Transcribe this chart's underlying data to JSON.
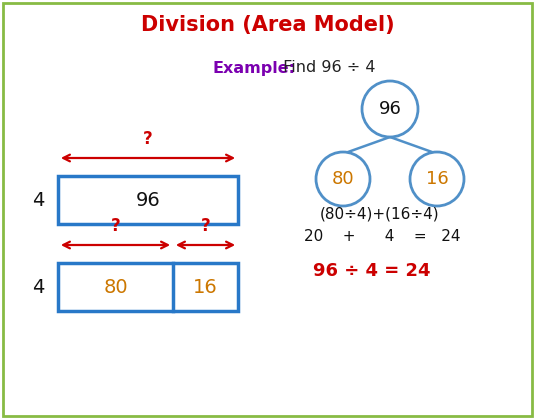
{
  "title": "Division (Area Model)",
  "title_color": "#cc0000",
  "title_fontsize": 15,
  "example_label": "Example:",
  "example_label_color": "#7b00b0",
  "example_text": " Find 96 ÷ 4",
  "example_text_color": "#222222",
  "example_fontsize": 11.5,
  "background_color": "#ffffff",
  "border_color": "#88bb44",
  "box_color": "#2878c8",
  "node_color": "#5090c8",
  "orange_color": "#cc7700",
  "red_color": "#cc0000",
  "black_color": "#111111",
  "fig_width": 5.35,
  "fig_height": 4.19,
  "dpi": 100
}
